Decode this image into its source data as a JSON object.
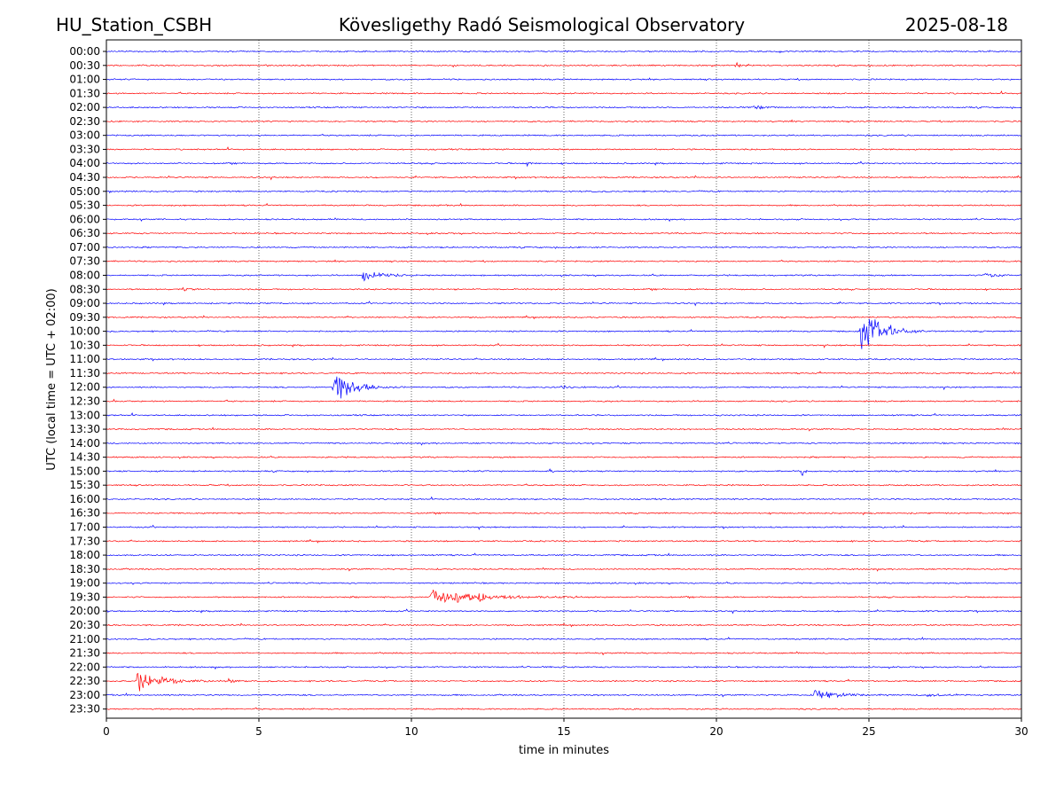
{
  "header": {
    "station": "HU_Station_CSBH",
    "observatory": "Kövesligethy Radó Seismological Observatory",
    "date": "2025-08-18"
  },
  "chart_data": {
    "type": "line",
    "chart_kind": "helicorder",
    "xlabel": "time in minutes",
    "ylabel": "UTC (local time = UTC + 02:00)",
    "xlim": [
      0,
      30
    ],
    "x_ticks": [
      0,
      5,
      10,
      15,
      20,
      25,
      30
    ],
    "x_grid": "dotted vertical lines at 5-minute ticks",
    "row_labels": [
      "00:00",
      "00:30",
      "01:00",
      "01:30",
      "02:00",
      "02:30",
      "03:00",
      "03:30",
      "04:00",
      "04:30",
      "05:00",
      "05:30",
      "06:00",
      "06:30",
      "07:00",
      "07:30",
      "08:00",
      "08:30",
      "09:00",
      "09:30",
      "10:00",
      "10:30",
      "11:00",
      "11:30",
      "12:00",
      "12:30",
      "13:00",
      "13:30",
      "14:00",
      "14:30",
      "15:00",
      "15:30",
      "16:00",
      "16:30",
      "17:00",
      "17:30",
      "18:00",
      "18:30",
      "19:00",
      "19:30",
      "20:00",
      "20:30",
      "21:00",
      "21:30",
      "22:00",
      "22:30",
      "23:00",
      "23:30"
    ],
    "row_colors": [
      "#0000ff",
      "#ff0000"
    ],
    "noise_level": 0.6,
    "events": [
      {
        "row": "00:30",
        "start_min": 20.6,
        "duration_min": 0.6,
        "amplitude": 3
      },
      {
        "row": "02:00",
        "start_min": 21.2,
        "duration_min": 1.2,
        "amplitude": 2.5
      },
      {
        "row": "04:00",
        "start_min": 13.8,
        "duration_min": 0.4,
        "amplitude": 2
      },
      {
        "row": "08:00",
        "start_min": 8.4,
        "duration_min": 2.0,
        "amplitude": 6
      },
      {
        "row": "08:00",
        "start_min": 28.8,
        "duration_min": 1.2,
        "amplitude": 3
      },
      {
        "row": "08:30",
        "start_min": 2.5,
        "duration_min": 0.6,
        "amplitude": 2
      },
      {
        "row": "10:00",
        "start_min": 24.7,
        "duration_min": 2.5,
        "amplitude": 26
      },
      {
        "row": "12:00",
        "start_min": 7.4,
        "duration_min": 2.4,
        "amplitude": 19
      },
      {
        "row": "12:00",
        "start_min": 14.8,
        "duration_min": 1.0,
        "amplitude": 2.5
      },
      {
        "row": "12:30",
        "start_min": 0.2,
        "duration_min": 0.3,
        "amplitude": 2.5
      },
      {
        "row": "13:00",
        "start_min": 20.0,
        "duration_min": 0.2,
        "amplitude": 3
      },
      {
        "row": "15:00",
        "start_min": 14.5,
        "duration_min": 0.4,
        "amplitude": 3
      },
      {
        "row": "15:00",
        "start_min": 22.8,
        "duration_min": 0.3,
        "amplitude": 5
      },
      {
        "row": "19:30",
        "start_min": 10.6,
        "duration_min": 5.0,
        "amplitude": 9
      },
      {
        "row": "19:30",
        "start_min": 12.2,
        "duration_min": 0.4,
        "amplitude": 6
      },
      {
        "row": "22:30",
        "start_min": 1.0,
        "duration_min": 2.8,
        "amplitude": 10
      },
      {
        "row": "22:30",
        "start_min": 4.0,
        "duration_min": 0.6,
        "amplitude": 3
      },
      {
        "row": "23:00",
        "start_min": 23.2,
        "duration_min": 2.6,
        "amplitude": 5
      },
      {
        "row": "23:00",
        "start_min": 26.9,
        "duration_min": 1.0,
        "amplitude": 2.5
      }
    ]
  }
}
